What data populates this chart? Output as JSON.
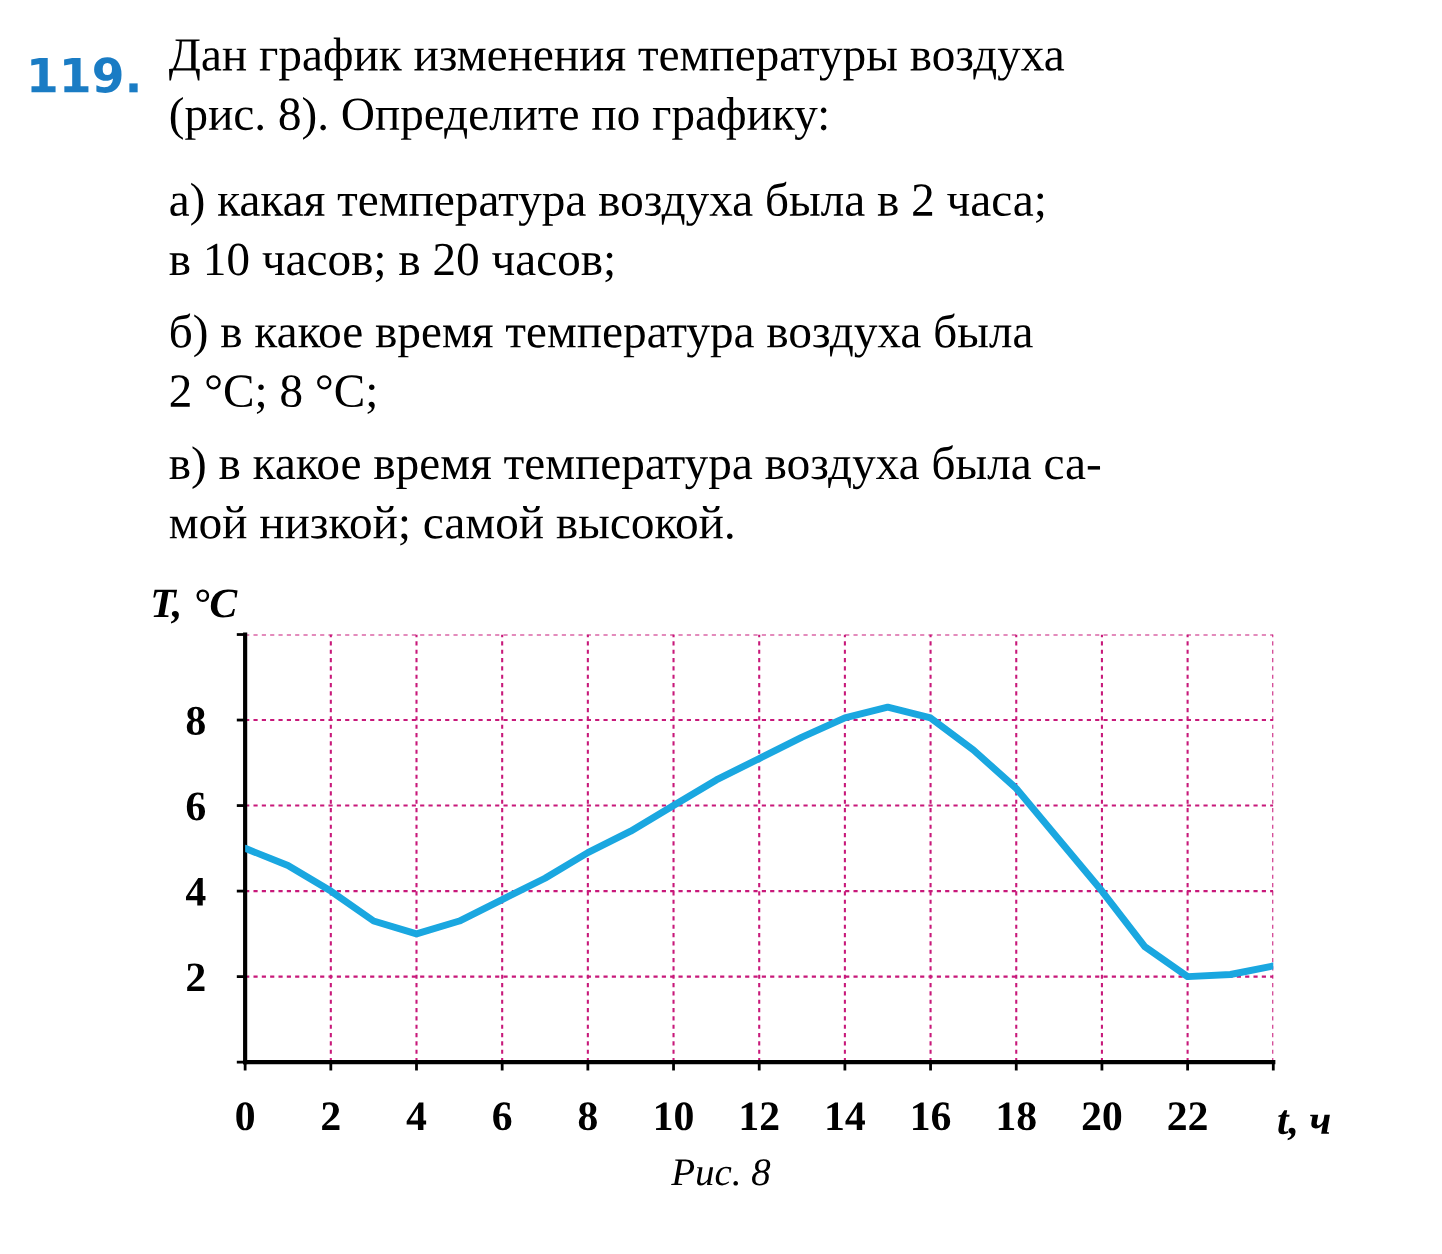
{
  "chart_data": {
    "type": "line",
    "title": "119.",
    "subtitle": "Дан график изменения температуры воздуха\n(рис. 8). Определите по графику:",
    "annotations": [
      "а) какая температура воздуха была в 2 часа;\nв 10 часов; в 20 часов;",
      "б) в какое время температура воздуха была\n2 °C; 8 °C;",
      "в) в какое время температура воздуха была са-\nмой низкой; самой высокой.",
      "Рис. 8"
    ],
    "xlabel": "t, ч",
    "ylabel": "T, °C",
    "x": [
      0,
      1,
      2,
      3,
      4,
      5,
      6,
      7,
      8,
      9,
      10,
      11,
      12,
      13,
      14,
      15,
      16,
      17,
      18,
      19,
      20,
      21,
      22,
      23,
      24
    ],
    "series": [
      {
        "color": "#1aa7e0",
        "values": [
          5,
          4.6,
          4.0,
          3.3,
          3.0,
          3.3,
          3.8,
          4.3,
          4.9,
          5.4,
          6.0,
          6.6,
          7.1,
          7.6,
          8.05,
          8.3,
          8.05,
          7.3,
          6.4,
          5.2,
          4.0,
          2.7,
          2.0,
          2.05,
          2.25
        ]
      }
    ],
    "xlim": [
      0,
      24
    ],
    "ylim": [
      0,
      10
    ],
    "xticks": [
      0,
      2,
      4,
      6,
      8,
      10,
      12,
      14,
      16,
      18,
      20,
      22,
      {
        "value": 24,
        "label": null
      }
    ],
    "yticks": [
      {
        "value": 0,
        "label": null
      },
      2,
      4,
      6,
      8,
      {
        "value": 10,
        "label": null
      }
    ],
    "grid": true,
    "marker": "none",
    "line_style": "solid"
  }
}
